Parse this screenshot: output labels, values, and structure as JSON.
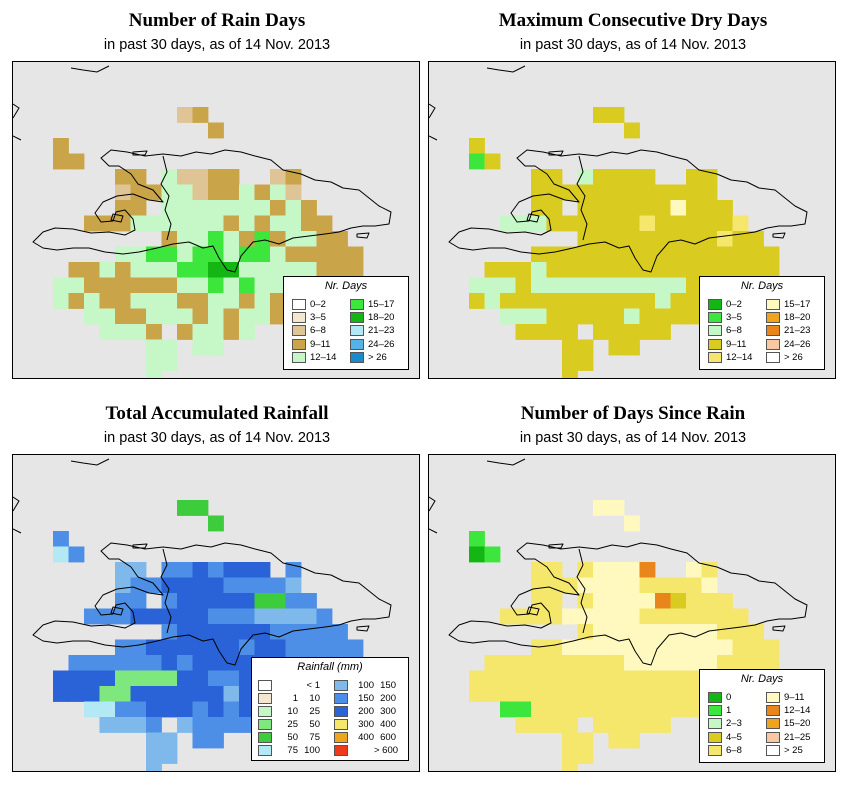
{
  "chart_data": [
    {
      "type": "heatmap",
      "title": "Number of Rain Days",
      "subtitle": "in past 30 days, as of  14 Nov. 2013",
      "legend_title": "Nr. Days",
      "bins": [
        {
          "label": "0–2",
          "color": "#ffffff"
        },
        {
          "label": "3–5",
          "color": "#f4e7cf"
        },
        {
          "label": "6–8",
          "color": "#dfc596"
        },
        {
          "label": "9–11",
          "color": "#c9a449"
        },
        {
          "label": "12–14",
          "color": "#c6f7c6"
        },
        {
          "label": "15–17",
          "color": "#3de63d"
        },
        {
          "label": "18–20",
          "color": "#14b614"
        },
        {
          "label": "21–23",
          "color": "#b3e8f5"
        },
        {
          "label": "24–26",
          "color": "#55b2e6"
        },
        {
          "label": "> 26",
          "color": "#1b8bc9"
        }
      ],
      "grid": {
        "x0": 40,
        "y0": 45,
        "cell": 15.5,
        "rows": [
          "........23.........",
          "..........3.........",
          "3...........................",
          "33...................................",
          "....33.42233..23",
          "....233442334342",
          "....33.4444444343",
          "..3334444443434433",
          ".......344543534433",
          "....4455455455433333",
          ".3343444556644444333",
          "4433333344545444443332",
          "4343344433443433333322",
          "..4433444343443333444",
          "...4443.34434..33",
          "......44.44",
          "......44",
          "......4"
        ]
      }
    },
    {
      "type": "heatmap",
      "title": "Maximum Consecutive Dry Days",
      "subtitle": "in past 30 days, as of  14 Nov. 2013",
      "legend_title": "Nr. Days",
      "bins": [
        {
          "label": "0–2",
          "color": "#14b614"
        },
        {
          "label": "3–5",
          "color": "#3de63d"
        },
        {
          "label": "6–8",
          "color": "#c6f7c6"
        },
        {
          "label": "9–11",
          "color": "#d9cb1f"
        },
        {
          "label": "12–14",
          "color": "#f5e76b"
        },
        {
          "label": "15–17",
          "color": "#fff9bf"
        },
        {
          "label": "18–20",
          "color": "#f0a31c"
        },
        {
          "label": "21–23",
          "color": "#e8851b"
        },
        {
          "label": "24–26",
          "color": "#f8c7a4"
        },
        {
          "label": "> 26",
          "color": "#ffffff"
        }
      ],
      "grid": {
        "x0": 40,
        "y0": 45,
        "cell": 15.5,
        "rows": [
          "........33.........",
          "..........3.........",
          "3...........................",
          "13...................................",
          "....33.23333..33",
          "....333333333333",
          "....33.3333335333",
          "..2223333334333334",
          ".......333333333433",
          "....3333333333333333",
          ".3332333333333333333",
          "2223222222222232323333",
          "3233333333332333333333",
          "..2223333323333333333",
          "...3333.33333..33",
          "......33.33",
          "......33",
          "......3"
        ]
      }
    },
    {
      "type": "heatmap",
      "title": "Total Accumulated Rainfall",
      "subtitle": "in past 30 days, as of  14 Nov. 2013",
      "legend_title": "Rainfall (mm)",
      "bins": [
        {
          "label_low": "",
          "label_high": "< 1",
          "color": "#ffffff"
        },
        {
          "label_low": "1",
          "label_high": "10",
          "color": "#f4e7cf"
        },
        {
          "label_low": "10",
          "label_high": "25",
          "color": "#c6f7c6"
        },
        {
          "label_low": "25",
          "label_high": "50",
          "color": "#7ee87e"
        },
        {
          "label_low": "50",
          "label_high": "75",
          "color": "#3ccc3c"
        },
        {
          "label_low": "75",
          "label_high": "100",
          "color": "#b3e8f5"
        },
        {
          "label_low": "100",
          "label_high": "150",
          "color": "#7fb8ea"
        },
        {
          "label_low": "150",
          "label_high": "200",
          "color": "#4d8fe6"
        },
        {
          "label_low": "200",
          "label_high": "300",
          "color": "#2a63d8"
        },
        {
          "label_low": "300",
          "label_high": "400",
          "color": "#f5e76b"
        },
        {
          "label_low": "400",
          "label_high": "600",
          "color": "#f0a31c"
        },
        {
          "label_low": "",
          "label_high": "> 600",
          "color": "#ee3a1b"
        }
      ],
      "grid": {
        "x0": 40,
        "y0": 45,
        "cell": 15.5,
        "rows": [
          "........44.........",
          "..........4.........",
          "7...........................",
          "57...................................",
          "....66.7787888.7",
          "....677888877776",
          "....77.7888884477",
          "..7778888877766667",
          ".......788888877777",
          "....7788888878877777",
          ".7777778788888877777",
          "8888333388778888888888",
          "8883388888868688887888",
          "..5577888787888888777",
          "...6667.67777..66",
          "......66.77",
          "......66",
          "......6"
        ]
      }
    },
    {
      "type": "heatmap",
      "title": "Number of Days Since Rain",
      "subtitle": "in past 30 days, as of  14 Nov. 2013",
      "legend_title": "Nr. Days",
      "bins": [
        {
          "label": "0",
          "color": "#14b614"
        },
        {
          "label": "1",
          "color": "#3de63d"
        },
        {
          "label": "2–3",
          "color": "#c6f7c6"
        },
        {
          "label": "4–5",
          "color": "#d9cb1f"
        },
        {
          "label": "6–8",
          "color": "#f5e76b"
        },
        {
          "label": "9–11",
          "color": "#fff9bf"
        },
        {
          "label": "12–14",
          "color": "#e8851b"
        },
        {
          "label": "15–20",
          "color": "#f0a31c"
        },
        {
          "label": "21–25",
          "color": "#f8c7a4"
        },
        {
          "label": "> 25",
          "color": "#ffffff"
        }
      ],
      "grid": {
        "x0": 40,
        "y0": 45,
        "cell": 15.5,
        "rows": [
          "........55.........",
          "..........5.........",
          "1...........................",
          "01...................................",
          "....44.45556..54",
          "....444555544445",
          "....44.4555563444",
          "..4444555554444444",
          ".......455555555444",
          "....4455555555555444",
          ".4444444445555554444",
          "4444444444444444444444",
          "4444444444444444444444",
          "..1144444444444444444",
          "...4444.44444..44",
          "......44.44",
          "......44",
          "......4"
        ]
      }
    }
  ]
}
